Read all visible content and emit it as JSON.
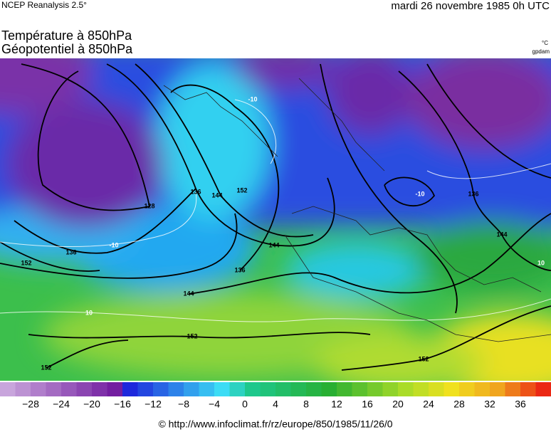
{
  "header": {
    "source": "NCEP Reanalysis 2.5°",
    "date": "mardi 26 novembre 1985 0h UTC"
  },
  "title": {
    "line1": "Température à 850hPa",
    "line2": "Géopotentiel à 850hPa"
  },
  "units": {
    "temperature": "°C",
    "geopotential": "gpdam"
  },
  "map": {
    "contour_labels": [
      "128",
      "136",
      "144",
      "152",
      "144",
      "136",
      "144",
      "152",
      "152",
      "152",
      "136",
      "144",
      "152",
      "136",
      "-10",
      "-10",
      "10",
      "-10",
      "10"
    ]
  },
  "colorbar": {
    "labels": [
      "−28",
      "−24",
      "−20",
      "−16",
      "−12",
      "−8",
      "−4",
      "0",
      "4",
      "8",
      "12",
      "16",
      "20",
      "24",
      "28",
      "32",
      "36"
    ]
  },
  "footer": "© http://www.infoclimat.fr/rz/europe/850/1985/11/26/0"
}
